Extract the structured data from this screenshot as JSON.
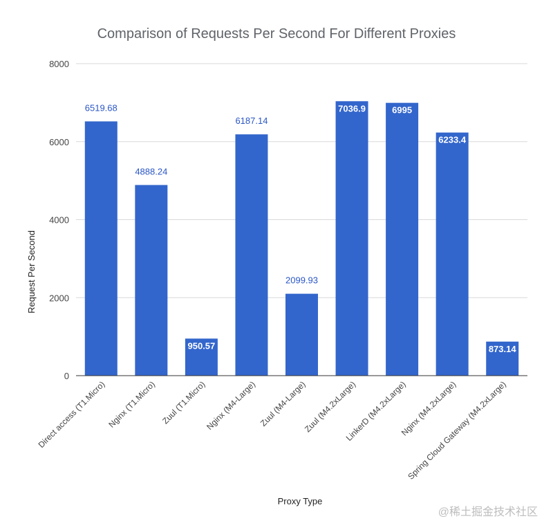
{
  "chart_data": {
    "type": "bar",
    "title": "Comparison of Requests Per Second For Different Proxies",
    "xlabel": "Proxy Type",
    "ylabel": "Request Per Second",
    "ylim": [
      0,
      8000
    ],
    "yticks": [
      0,
      2000,
      4000,
      6000,
      8000
    ],
    "grid": true,
    "legend": "none",
    "bar_color": "#3366cc",
    "categories": [
      "Direct access (T1.Micro)",
      "Nginx (T1.Micro)",
      "Zuul (T1.Micro)",
      "Nginx (M4-Large)",
      "Zuul (M4-Large)",
      "Zuul (M4.2xLarge)",
      "LinkerD (M4.2xLarge)",
      "Nginx (M4.2xLarge)",
      "Spring Cloud Gateway (M4.2xLarge)"
    ],
    "values": [
      6519.68,
      4888.24,
      950.57,
      6187.14,
      2099.93,
      7036.9,
      6995,
      6233.4,
      873.14
    ],
    "data_labels": [
      "6519.68",
      "4888.24",
      "950.57",
      "6187.14",
      "2099.93",
      "7036.9",
      "6995",
      "6233.4",
      "873.14"
    ],
    "label_inside": [
      false,
      false,
      true,
      false,
      false,
      true,
      true,
      true,
      true
    ]
  },
  "watermark": "@稀土掘金技术社区"
}
